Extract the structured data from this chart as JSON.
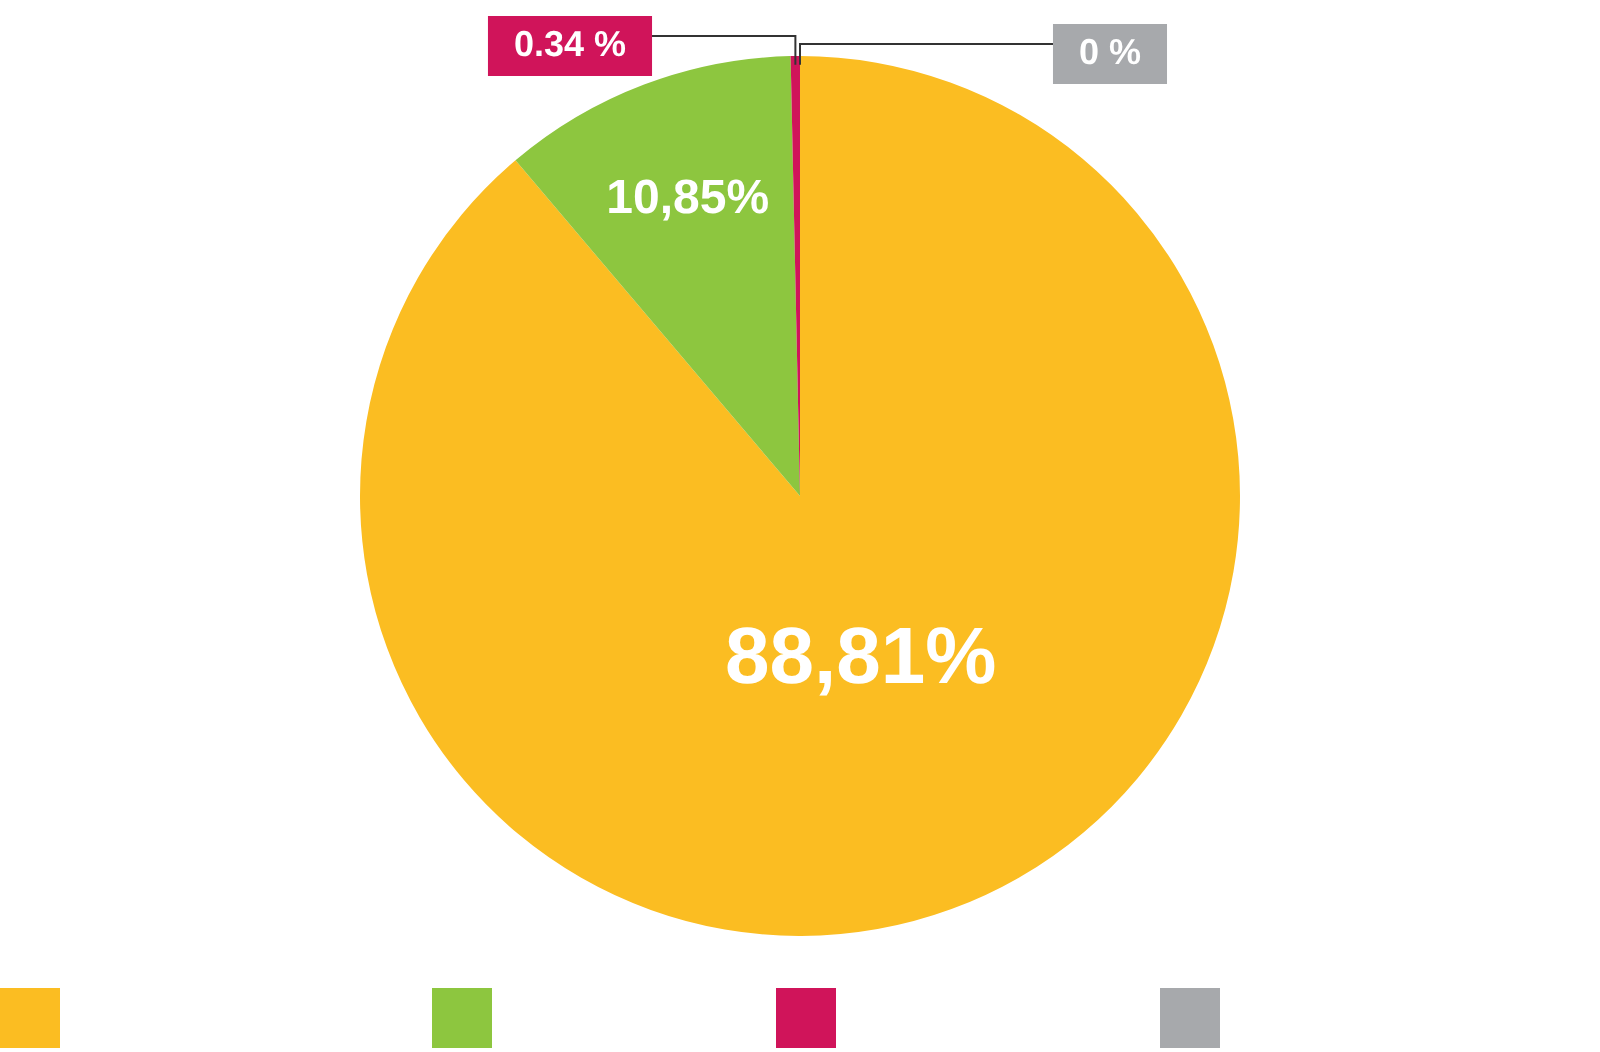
{
  "chart_data": {
    "type": "pie",
    "categories": [
      null,
      null,
      null,
      null
    ],
    "values": [
      88.81,
      10.85,
      0.34,
      0
    ],
    "colors": [
      "#fbbd22",
      "#8dc63f",
      "#d0145a",
      "#a7a9ac"
    ],
    "value_labels": [
      "88,81%",
      "10,85%",
      "0.34 %",
      "0 %"
    ]
  }
}
